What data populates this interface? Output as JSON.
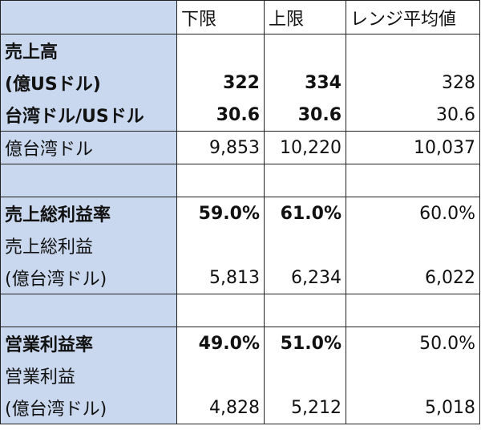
{
  "header": {
    "col1": "下限",
    "col2": "上限",
    "col3": "レンジ平均値"
  },
  "sections": {
    "revenue": {
      "title": "売上高",
      "unit": "(億USドル)",
      "low": "322",
      "high": "334",
      "avg": "328",
      "fx_label": "台湾ドル/USドル",
      "fx_low": "30.6",
      "fx_high": "30.6",
      "fx_avg": "30.6",
      "twd_label": "億台湾ドル",
      "twd_low": "9,853",
      "twd_high": "10,220",
      "twd_avg": "10,037"
    },
    "gross": {
      "rate_label": "売上総利益率",
      "rate_low": "59.0%",
      "rate_high": "61.0%",
      "rate_avg": "60.0%",
      "profit_label": "売上総利益",
      "unit": "(億台湾ドル)",
      "low": "5,813",
      "high": "6,234",
      "avg": "6,022"
    },
    "operating": {
      "rate_label": "営業利益率",
      "rate_low": "49.0%",
      "rate_high": "51.0%",
      "rate_avg": "50.0%",
      "profit_label": "営業利益",
      "unit": "(億台湾ドル)",
      "low": "4,828",
      "high": "5,212",
      "avg": "5,018"
    }
  },
  "colors": {
    "label_bg": "#c9d8ee",
    "border": "#222222"
  }
}
